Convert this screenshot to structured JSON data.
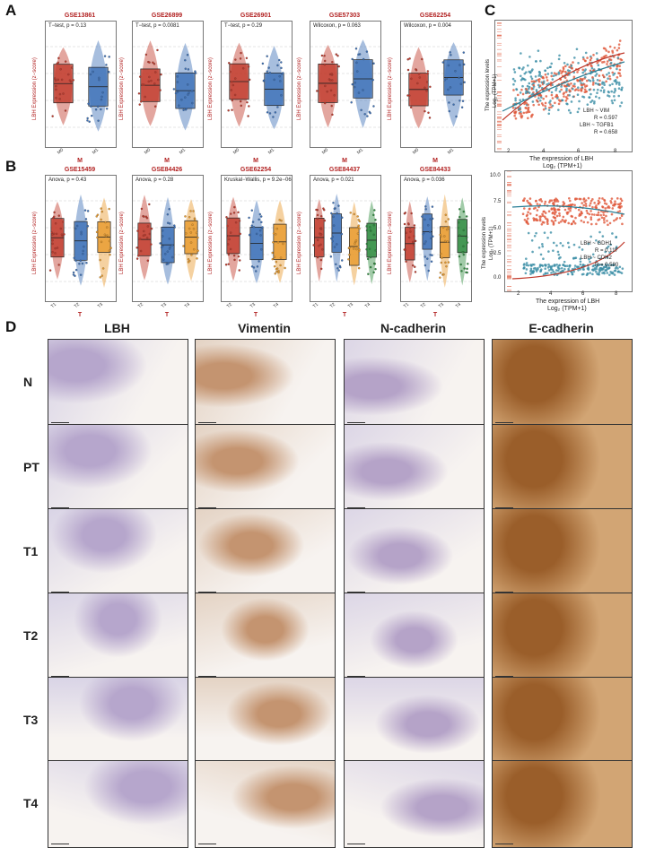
{
  "labels": {
    "a": "A",
    "b": "B",
    "c": "C",
    "d": "D"
  },
  "panelA": {
    "ylabel": "LBH Expression (z−score)",
    "group_label": "M",
    "plots": [
      {
        "title": "GSE13861",
        "stat": "T−test, p = 0.13",
        "cats": [
          "M0",
          "M1"
        ]
      },
      {
        "title": "GSE26899",
        "stat": "T−test, p = 0.0081",
        "cats": [
          "M0",
          "M1"
        ]
      },
      {
        "title": "GSE26901",
        "stat": "T−test, p = 0.29",
        "cats": [
          "M0",
          "M1"
        ]
      },
      {
        "title": "GSE57303",
        "stat": "Wilcoxon, p = 0.063",
        "cats": [
          "M0",
          "M1"
        ]
      },
      {
        "title": "GSE62254",
        "stat": "Wilcoxon, p = 0.004",
        "cats": [
          "M0",
          "M1"
        ]
      }
    ]
  },
  "panelB": {
    "ylabel": "LBH Expression (z−score)",
    "group_label": "T",
    "plots": [
      {
        "title": "GSE15459",
        "stat": "Anova, p = 0.43",
        "cats": [
          "T1",
          "T2",
          "T3"
        ]
      },
      {
        "title": "GSE84426",
        "stat": "Anova, p = 0.28",
        "cats": [
          "T2",
          "T3",
          "T4"
        ]
      },
      {
        "title": "GSE62254",
        "stat": "Kruskal−Wallis, p = 9.2e−06",
        "cats": [
          "T2",
          "T3",
          "T4"
        ]
      },
      {
        "title": "GSE84437",
        "stat": "Anova, p = 0.021",
        "cats": [
          "T1",
          "T2",
          "T3",
          "T4"
        ]
      },
      {
        "title": "GSE84433",
        "stat": "Anova, p = 0.036",
        "cats": [
          "T1",
          "T2",
          "T3",
          "T4"
        ]
      }
    ]
  },
  "panelC": {
    "top": {
      "ylabel1": "The expression levels",
      "ylabel2": "Log₂ (TPM+1)",
      "xlabel1": "The expression of LBH",
      "xlabel2": "Log₂ (TPM+1)",
      "legend": [
        "LBH ~ VIM",
        "R = 0.597",
        "LBH ~ TGFB1",
        "R = 0.658"
      ],
      "yticks": [
        "4",
        "6",
        "8",
        "10"
      ],
      "xticks": [
        "2",
        "4",
        "6",
        "8"
      ]
    },
    "bottom": {
      "ylabel1": "The expression levels",
      "ylabel2": "Log₂ (TPM+1)",
      "xlabel1": "The expression of LBH",
      "xlabel2": "Log₂ (TPM+1)",
      "legend": [
        "LBH ~ GDH1",
        "R = 0.117",
        "LBH ~ CDH2",
        "R = 0.580"
      ],
      "yticks": [
        "0.0",
        "2.5",
        "5.0",
        "7.5",
        "10.0"
      ],
      "xticks": [
        "2",
        "4",
        "6",
        "8"
      ]
    }
  },
  "panelD": {
    "columns": [
      "LBH",
      "Vimentin",
      "N-cadherin",
      "E-cadherin"
    ],
    "rows": [
      "N",
      "PT",
      "T1",
      "T2",
      "T3",
      "T4"
    ]
  }
}
